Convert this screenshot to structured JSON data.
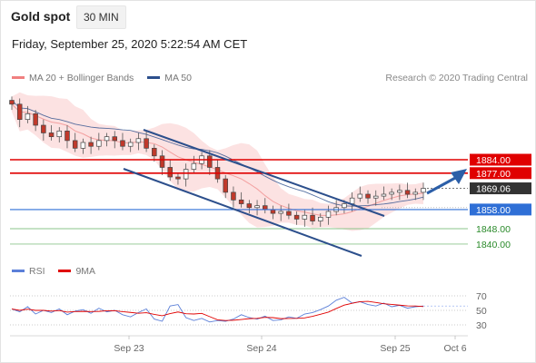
{
  "header": {
    "title": "Gold spot",
    "interval": "30 MIN",
    "datetime": "Friday, September 25, 2020 5:22:54 AM CET"
  },
  "legend": {
    "bollinger": {
      "label": "MA 20 + Bollinger Bands",
      "color": "#f08080"
    },
    "ma50": {
      "label": "MA 50",
      "color": "#2c4f8c"
    },
    "credit": "Research © 2020 Trading Central"
  },
  "rsi_legend": {
    "rsi": {
      "label": "RSI",
      "color": "#5b7fd8"
    },
    "ma9": {
      "label": "9MA",
      "color": "#e00000"
    }
  },
  "chart_data": {
    "type": "candlestick",
    "instrument": "Gold spot",
    "timeframe": "30 MIN",
    "x_ticks": [
      "Sep 23",
      "Sep 24",
      "Sep 25",
      "Oct 6"
    ],
    "price_levels": [
      {
        "value": 1884.0,
        "label": "1884.00",
        "role": "resistance",
        "color": "#e00000"
      },
      {
        "value": 1877.0,
        "label": "1877.00",
        "role": "resistance",
        "color": "#e00000"
      },
      {
        "value": 1869.06,
        "label": "1869.06",
        "role": "last",
        "color": "#333333"
      },
      {
        "value": 1858.0,
        "label": "1858.00",
        "role": "pivot",
        "color": "#2f6fd6"
      },
      {
        "value": 1848.0,
        "label": "1848.00",
        "role": "support",
        "color": "#2a8a2a"
      },
      {
        "value": 1840.0,
        "label": "1840.00",
        "role": "support",
        "color": "#2a8a2a"
      }
    ],
    "close_series": [
      1913,
      1905,
      1908,
      1902,
      1898,
      1896,
      1899,
      1894,
      1890,
      1893,
      1891,
      1894,
      1896,
      1894,
      1891,
      1893,
      1895,
      1890,
      1886,
      1880,
      1875,
      1874,
      1879,
      1882,
      1886,
      1880,
      1874,
      1867,
      1863,
      1861,
      1859,
      1860,
      1858,
      1856,
      1857,
      1855,
      1853,
      1855,
      1852,
      1854,
      1857,
      1859,
      1861,
      1864,
      1866,
      1864,
      1865,
      1866,
      1867,
      1868,
      1866,
      1867,
      1869.06
    ],
    "rsi": {
      "levels": [
        30,
        50,
        70
      ],
      "ylim": [
        20,
        80
      ],
      "values": [
        52,
        48,
        55,
        45,
        50,
        47,
        52,
        44,
        49,
        51,
        46,
        53,
        48,
        50,
        44,
        41,
        47,
        52,
        38,
        35,
        56,
        58,
        40,
        36,
        39,
        34,
        36,
        35,
        38,
        44,
        40,
        38,
        42,
        36,
        37,
        41,
        39,
        45,
        47,
        51,
        56,
        64,
        68,
        60,
        62,
        58,
        56,
        60,
        55,
        57,
        53,
        55,
        56
      ]
    }
  }
}
